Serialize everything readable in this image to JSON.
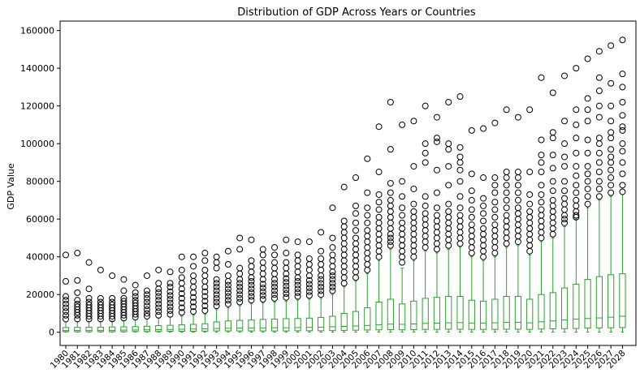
{
  "chart_data": {
    "type": "box",
    "title": "Distribution of GDP Across Years or Countries",
    "xlabel": "",
    "ylabel": "GDP Value",
    "ylim": [
      -7000,
      165000
    ],
    "yticks": [
      0,
      20000,
      40000,
      60000,
      80000,
      100000,
      120000,
      140000,
      160000
    ],
    "ytick_labels": [
      "0",
      "20000",
      "40000",
      "60000",
      "80000",
      "100000",
      "120000",
      "140000",
      "160000"
    ],
    "categories": [
      "1980",
      "1981",
      "1982",
      "1983",
      "1984",
      "1985",
      "1986",
      "1987",
      "1988",
      "1989",
      "1990",
      "1991",
      "1992",
      "1993",
      "1994",
      "1995",
      "1996",
      "1997",
      "1998",
      "1999",
      "2000",
      "2001",
      "2002",
      "2003",
      "2004",
      "2005",
      "2006",
      "2007",
      "2008",
      "2009",
      "2010",
      "2011",
      "2012",
      "2013",
      "2014",
      "2015",
      "2016",
      "2017",
      "2018",
      "2019",
      "2020",
      "2021",
      "2022",
      "2023",
      "2024",
      "2025",
      "2026",
      "2027",
      "2028"
    ],
    "box_color": "#2ca02c",
    "median_color": "#2ca02c",
    "flier_color": "#000000",
    "grid": false,
    "series": [
      {
        "q1": 300,
        "median": 900,
        "q3": 2500,
        "whisker_low": 50,
        "whisker_high": 5500,
        "outliers": [
          7000,
          9000,
          11000,
          13000,
          15000,
          17000,
          19000,
          27000,
          41000
        ]
      },
      {
        "q1": 300,
        "median": 1000,
        "q3": 2600,
        "whisker_low": 50,
        "whisker_high": 5700,
        "outliers": [
          7000,
          9000,
          10500,
          12000,
          13500,
          15000,
          17000,
          21000,
          27500,
          42000
        ]
      },
      {
        "q1": 300,
        "median": 1000,
        "q3": 2700,
        "whisker_low": 50,
        "whisker_high": 5800,
        "outliers": [
          7000,
          8500,
          10000,
          11500,
          13000,
          14500,
          16000,
          18000,
          23000,
          37000
        ]
      },
      {
        "q1": 300,
        "median": 1000,
        "q3": 2700,
        "whisker_low": 50,
        "whisker_high": 5800,
        "outliers": [
          7000,
          8500,
          10000,
          11500,
          13000,
          14500,
          16000,
          18000,
          33000
        ]
      },
      {
        "q1": 300,
        "median": 1000,
        "q3": 2800,
        "whisker_low": 50,
        "whisker_high": 6000,
        "outliers": [
          7000,
          8500,
          10000,
          11500,
          13000,
          14500,
          16000,
          18000,
          30000
        ]
      },
      {
        "q1": 300,
        "median": 1100,
        "q3": 2900,
        "whisker_low": 50,
        "whisker_high": 6200,
        "outliers": [
          7500,
          9000,
          10500,
          12000,
          13500,
          15000,
          16500,
          18000,
          22000,
          28000
        ]
      },
      {
        "q1": 400,
        "median": 1200,
        "q3": 3000,
        "whisker_low": 50,
        "whisker_high": 6500,
        "outliers": [
          8000,
          9500,
          11000,
          12500,
          14000,
          15500,
          17000,
          19000,
          21000,
          25000
        ]
      },
      {
        "q1": 400,
        "median": 1300,
        "q3": 3200,
        "whisker_low": 50,
        "whisker_high": 7000,
        "outliers": [
          8500,
          10000,
          12000,
          14000,
          16000,
          18000,
          20000,
          22000,
          30000
        ]
      },
      {
        "q1": 400,
        "median": 1400,
        "q3": 3500,
        "whisker_low": 50,
        "whisker_high": 7500,
        "outliers": [
          9000,
          11000,
          13000,
          15000,
          17000,
          19000,
          21000,
          23000,
          26000,
          33000
        ]
      },
      {
        "q1": 500,
        "median": 1500,
        "q3": 3700,
        "whisker_low": 50,
        "whisker_high": 8000,
        "outliers": [
          9500,
          11500,
          13500,
          15500,
          17500,
          19500,
          21500,
          24000,
          26000,
          32000
        ]
      },
      {
        "q1": 500,
        "median": 1600,
        "q3": 4000,
        "whisker_low": 50,
        "whisker_high": 8500,
        "outliers": [
          10500,
          13000,
          15500,
          18000,
          20500,
          23000,
          26000,
          29000,
          33000,
          40000
        ]
      },
      {
        "q1": 500,
        "median": 1700,
        "q3": 4200,
        "whisker_low": 50,
        "whisker_high": 9000,
        "outliers": [
          11000,
          13500,
          16000,
          18500,
          21000,
          24000,
          27000,
          30000,
          35000,
          40000
        ]
      },
      {
        "q1": 600,
        "median": 1800,
        "q3": 4500,
        "whisker_low": 50,
        "whisker_high": 9500,
        "outliers": [
          11500,
          14000,
          16500,
          19000,
          21500,
          24000,
          27000,
          30000,
          33000,
          38000,
          42000
        ]
      },
      {
        "q1": 700,
        "median": 2000,
        "q3": 5500,
        "whisker_low": 50,
        "whisker_high": 12000,
        "outliers": [
          14000,
          16000,
          18000,
          20000,
          22000,
          24000,
          26000,
          28000,
          34000,
          37000,
          40000
        ]
      },
      {
        "q1": 700,
        "median": 2100,
        "q3": 6000,
        "whisker_low": 50,
        "whisker_high": 13000,
        "outliers": [
          15000,
          17000,
          19000,
          21000,
          23000,
          25000,
          27000,
          30000,
          36000,
          43000
        ]
      },
      {
        "q1": 700,
        "median": 2200,
        "q3": 6300,
        "whisker_low": 50,
        "whisker_high": 14000,
        "outliers": [
          16000,
          18000,
          20000,
          22000,
          24000,
          26000,
          28000,
          31000,
          34000,
          44000,
          50000
        ]
      },
      {
        "q1": 700,
        "median": 2300,
        "q3": 6500,
        "whisker_low": 50,
        "whisker_high": 15000,
        "outliers": [
          17000,
          19000,
          21000,
          23000,
          25000,
          27000,
          29000,
          32000,
          35000,
          38000,
          49000
        ]
      },
      {
        "q1": 700,
        "median": 2300,
        "q3": 6800,
        "whisker_low": 50,
        "whisker_high": 15500,
        "outliers": [
          17500,
          19500,
          21500,
          23500,
          25500,
          28000,
          31000,
          34000,
          37000,
          41000,
          44000
        ]
      },
      {
        "q1": 700,
        "median": 2400,
        "q3": 7000,
        "whisker_low": 50,
        "whisker_high": 16000,
        "outliers": [
          18000,
          20000,
          22000,
          24000,
          26000,
          28000,
          31000,
          34000,
          37000,
          41000,
          45000
        ]
      },
      {
        "q1": 700,
        "median": 2400,
        "q3": 7200,
        "whisker_low": 50,
        "whisker_high": 16500,
        "outliers": [
          18500,
          20500,
          22500,
          24500,
          26500,
          28500,
          31000,
          34000,
          37000,
          42000,
          49000
        ]
      },
      {
        "q1": 800,
        "median": 2500,
        "q3": 7300,
        "whisker_low": 50,
        "whisker_high": 17000,
        "outliers": [
          19000,
          21000,
          23000,
          25000,
          27000,
          29000,
          32000,
          35000,
          38000,
          41000,
          48000
        ]
      },
      {
        "q1": 800,
        "median": 2600,
        "q3": 7500,
        "whisker_low": 50,
        "whisker_high": 17500,
        "outliers": [
          19500,
          21500,
          23500,
          25500,
          27500,
          30000,
          33000,
          36000,
          39000,
          48000
        ]
      },
      {
        "q1": 800,
        "median": 2700,
        "q3": 7800,
        "whisker_low": 50,
        "whisker_high": 18000,
        "outliers": [
          20000,
          22000,
          24000,
          26000,
          28000,
          30000,
          33000,
          36000,
          39000,
          43000,
          53000
        ]
      },
      {
        "q1": 900,
        "median": 2900,
        "q3": 8500,
        "whisker_low": 50,
        "whisker_high": 20000,
        "outliers": [
          22000,
          24000,
          26000,
          28000,
          30000,
          32000,
          35000,
          38000,
          41000,
          45000,
          50000,
          66000
        ]
      },
      {
        "q1": 1000,
        "median": 3100,
        "q3": 10000,
        "whisker_low": 50,
        "whisker_high": 24000,
        "outliers": [
          26000,
          29000,
          32000,
          35000,
          38000,
          41000,
          44000,
          47000,
          50000,
          53000,
          56000,
          59000,
          77000
        ]
      },
      {
        "q1": 1100,
        "median": 3300,
        "q3": 11000,
        "whisker_low": 50,
        "whisker_high": 27000,
        "outliers": [
          29000,
          32000,
          35000,
          38000,
          41000,
          44000,
          47000,
          50000,
          54000,
          58000,
          63000,
          67000,
          82000
        ]
      },
      {
        "q1": 1200,
        "median": 3600,
        "q3": 13000,
        "whisker_low": 50,
        "whisker_high": 31000,
        "outliers": [
          33000,
          36000,
          39000,
          42000,
          45000,
          48000,
          51000,
          54000,
          58000,
          62000,
          66000,
          74000,
          92000
        ]
      },
      {
        "q1": 1300,
        "median": 4000,
        "q3": 16000,
        "whisker_low": 50,
        "whisker_high": 38000,
        "outliers": [
          40000,
          43000,
          46000,
          49000,
          52000,
          55000,
          58000,
          61000,
          65000,
          69000,
          73000,
          85000,
          109000
        ]
      },
      {
        "q1": 1400,
        "median": 4300,
        "q3": 17500,
        "whisker_low": 50,
        "whisker_high": 44000,
        "outliers": [
          46000,
          48000,
          50000,
          52000,
          55000,
          58000,
          61000,
          64000,
          67000,
          70000,
          74000,
          79000,
          97000,
          122000
        ]
      },
      {
        "q1": 1300,
        "median": 4200,
        "q3": 15000,
        "whisker_low": 50,
        "whisker_high": 34000,
        "outliers": [
          37000,
          40000,
          43000,
          46000,
          49000,
          52000,
          55000,
          58000,
          62000,
          66000,
          72000,
          80000,
          110000
        ]
      },
      {
        "q1": 1400,
        "median": 4400,
        "q3": 16500,
        "whisker_low": 50,
        "whisker_high": 38000,
        "outliers": [
          40000,
          43000,
          46000,
          49000,
          52000,
          55000,
          58000,
          61000,
          64000,
          68000,
          76000,
          88000,
          112000
        ]
      },
      {
        "q1": 1500,
        "median": 4700,
        "q3": 18000,
        "whisker_low": 50,
        "whisker_high": 43000,
        "outliers": [
          45000,
          48000,
          51000,
          54000,
          57000,
          60000,
          63000,
          67000,
          72000,
          90000,
          95000,
          100000,
          120000
        ]
      },
      {
        "q1": 1500,
        "median": 4800,
        "q3": 18500,
        "whisker_low": 50,
        "whisker_high": 42000,
        "outliers": [
          44000,
          47000,
          50000,
          53000,
          56000,
          59000,
          62000,
          66000,
          74000,
          86000,
          101000,
          103000,
          114000
        ]
      },
      {
        "q1": 1600,
        "median": 5000,
        "q3": 19000,
        "whisker_low": 50,
        "whisker_high": 44000,
        "outliers": [
          46000,
          49000,
          52000,
          55000,
          58000,
          61000,
          64000,
          68000,
          78000,
          88000,
          97000,
          100000,
          122000
        ]
      },
      {
        "q1": 1600,
        "median": 5100,
        "q3": 19000,
        "whisker_low": 50,
        "whisker_high": 45000,
        "outliers": [
          47000,
          50000,
          53000,
          56000,
          59000,
          62000,
          66000,
          72000,
          80000,
          86000,
          90000,
          93000,
          98000,
          125000
        ]
      },
      {
        "q1": 1500,
        "median": 4900,
        "q3": 17000,
        "whisker_low": 50,
        "whisker_high": 40000,
        "outliers": [
          42000,
          45000,
          48000,
          51000,
          54000,
          57000,
          61000,
          65000,
          70000,
          75000,
          84000,
          107000
        ]
      },
      {
        "q1": 1500,
        "median": 4900,
        "q3": 16500,
        "whisker_low": 50,
        "whisker_high": 38000,
        "outliers": [
          40000,
          43000,
          46000,
          49000,
          52000,
          55000,
          59000,
          63000,
          67000,
          71000,
          82000,
          108000
        ]
      },
      {
        "q1": 1500,
        "median": 5000,
        "q3": 17500,
        "whisker_low": 50,
        "whisker_high": 40000,
        "outliers": [
          42000,
          45000,
          48000,
          51000,
          54000,
          57000,
          61000,
          65000,
          69000,
          74000,
          78000,
          82000,
          111000
        ]
      },
      {
        "q1": 1600,
        "median": 5200,
        "q3": 19000,
        "whisker_low": 50,
        "whisker_high": 45000,
        "outliers": [
          47000,
          50000,
          53000,
          56000,
          59000,
          62000,
          66000,
          70000,
          74000,
          78000,
          82000,
          85000,
          118000
        ]
      },
      {
        "q1": 1600,
        "median": 5300,
        "q3": 19000,
        "whisker_low": 50,
        "whisker_high": 46000,
        "outliers": [
          48000,
          51000,
          54000,
          57000,
          60000,
          63000,
          66000,
          70000,
          74000,
          78000,
          82000,
          85000,
          114000
        ]
      },
      {
        "q1": 1500,
        "median": 5000,
        "q3": 17500,
        "whisker_low": 50,
        "whisker_high": 41000,
        "outliers": [
          43000,
          46000,
          49000,
          52000,
          55000,
          58000,
          61000,
          64000,
          68000,
          73000,
          85000,
          118000
        ]
      },
      {
        "q1": 1700,
        "median": 5600,
        "q3": 20000,
        "whisker_low": 50,
        "whisker_high": 48000,
        "outliers": [
          50000,
          53000,
          56000,
          59000,
          62000,
          65000,
          69000,
          73000,
          78000,
          85000,
          90000,
          94000,
          102000,
          135000
        ]
      },
      {
        "q1": 1800,
        "median": 6000,
        "q3": 21000,
        "whisker_low": 50,
        "whisker_high": 50000,
        "outliers": [
          52000,
          55000,
          58000,
          61000,
          64000,
          67000,
          70000,
          75000,
          80000,
          87000,
          94000,
          103000,
          106000,
          127000
        ]
      },
      {
        "q1": 1900,
        "median": 6500,
        "q3": 23500,
        "whisker_low": 50,
        "whisker_high": 56000,
        "outliers": [
          58000,
          60000,
          62000,
          65000,
          68000,
          71000,
          75000,
          80000,
          88000,
          93000,
          100000,
          112000,
          136000
        ]
      },
      {
        "q1": 2000,
        "median": 7000,
        "q3": 25500,
        "whisker_low": 50,
        "whisker_high": 60000,
        "outliers": [
          61000,
          62000,
          64000,
          67000,
          70000,
          74000,
          78000,
          83000,
          88000,
          95000,
          103000,
          110000,
          118000,
          140000
        ]
      },
      {
        "q1": 2200,
        "median": 7300,
        "q3": 28000,
        "whisker_low": 50,
        "whisker_high": 66000,
        "outliers": [
          68000,
          72000,
          76000,
          80000,
          84000,
          88000,
          95000,
          102000,
          112000,
          118000,
          124000,
          145000
        ]
      },
      {
        "q1": 2300,
        "median": 7600,
        "q3": 29500,
        "whisker_low": 50,
        "whisker_high": 70000,
        "outliers": [
          72000,
          76000,
          80000,
          85000,
          90000,
          95000,
          100000,
          103000,
          114000,
          120000,
          128000,
          135000,
          149000
        ]
      },
      {
        "q1": 2400,
        "median": 8000,
        "q3": 30500,
        "whisker_low": 50,
        "whisker_high": 72000,
        "outliers": [
          74000,
          78000,
          82000,
          86000,
          90000,
          93000,
          97000,
          103000,
          106000,
          112000,
          120000,
          132000,
          152000
        ]
      },
      {
        "q1": 2500,
        "median": 8500,
        "q3": 31000,
        "whisker_low": 50,
        "whisker_high": 73000,
        "outliers": [
          74500,
          78000,
          84000,
          90000,
          96000,
          100000,
          107000,
          109000,
          115000,
          122000,
          130000,
          137000,
          155000
        ]
      }
    ]
  }
}
